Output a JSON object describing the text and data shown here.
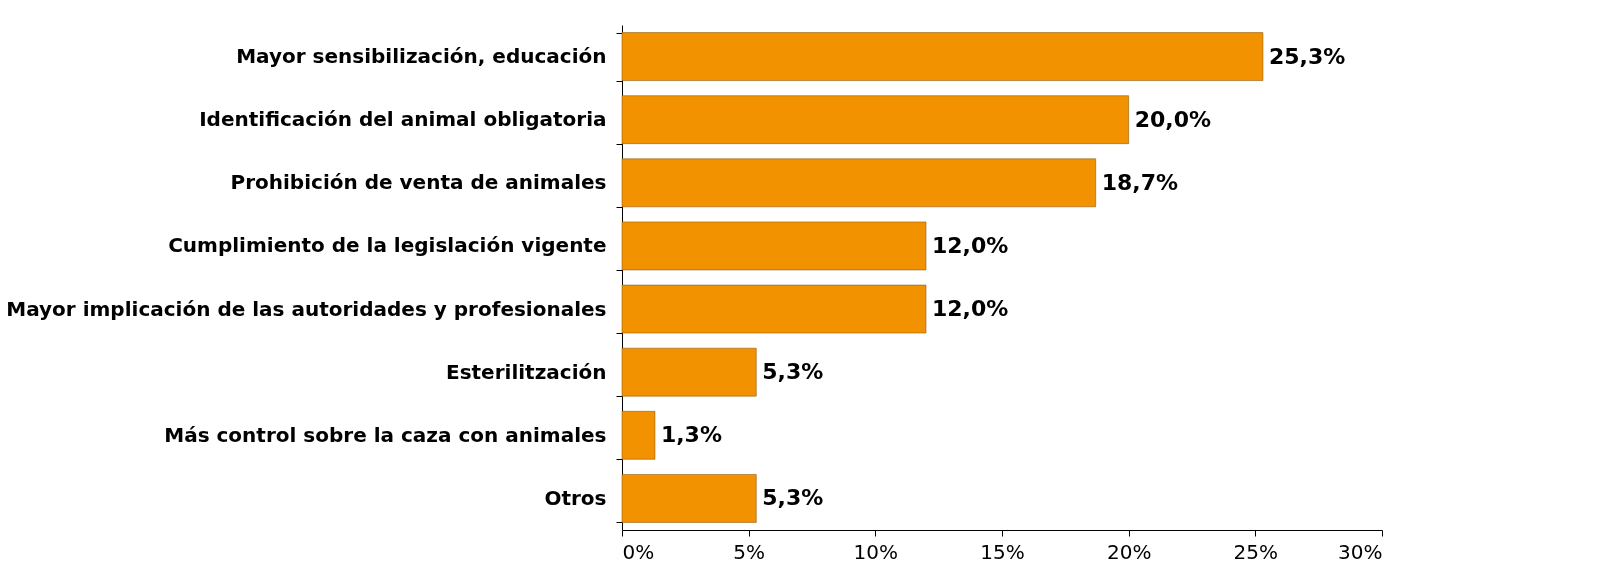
{
  "chart_data": {
    "type": "bar",
    "orientation": "horizontal",
    "categories": [
      "Mayor sensibilización, educación",
      "Identificación del animal obligatoria",
      "Prohibición de venta de animales",
      "Cumplimiento de la legislación vigente",
      "Mayor implicación de las autoridades y profesionales",
      "Esterilitzación",
      "Más control sobre la caza con animales",
      "Otros"
    ],
    "values": [
      25.3,
      20.0,
      18.7,
      12.0,
      12.0,
      5.3,
      1.3,
      5.3
    ],
    "value_labels": [
      "25,3%",
      "20,0%",
      "18,7%",
      "12,0%",
      "12,0%",
      "5,3%",
      "1,3%",
      "5,3%"
    ],
    "color": "#f39200",
    "xlim": [
      0,
      30
    ],
    "xticks": [
      {
        "value": 0,
        "label": "0%"
      },
      {
        "value": 5,
        "label": "5%"
      },
      {
        "value": 10,
        "label": "10%"
      },
      {
        "value": 15,
        "label": "15%"
      },
      {
        "value": 20,
        "label": "20%"
      },
      {
        "value": 25,
        "label": "25%"
      },
      {
        "value": 30,
        "label": "30%"
      }
    ]
  }
}
